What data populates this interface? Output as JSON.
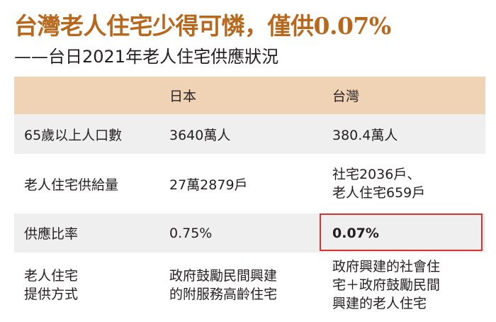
{
  "title": "台灣老人住宅少得可憐，僅供0.07%",
  "subtitle": "——台日2021年老人住宅供應狀況",
  "table": {
    "headers": [
      "",
      "日本",
      "台灣"
    ],
    "rows": [
      {
        "label": "65歲以上人口數",
        "japan": "3640萬人",
        "taiwan": "380.4萬人"
      },
      {
        "label": "老人住宅供給量",
        "japan": "27萬2879戶",
        "taiwan_lines": [
          "社宅2036戶、",
          "老人住宅659戶"
        ]
      },
      {
        "label": "供應比率",
        "japan": "0.75%",
        "taiwan": "0.07%"
      },
      {
        "label_lines": [
          "老人住宅",
          "提供方式"
        ],
        "japan_lines": [
          "政府鼓勵民間興建",
          "的附服務高齡住宅"
        ],
        "taiwan_lines": [
          "政府興建的社會住",
          "宅＋政府鼓勵民間",
          "興建的老人住宅"
        ]
      }
    ]
  },
  "colors": {
    "title": "#b8681c",
    "header_bg": "#efd3b4",
    "row_gray": "#efefef",
    "highlight": "#d9342b"
  }
}
